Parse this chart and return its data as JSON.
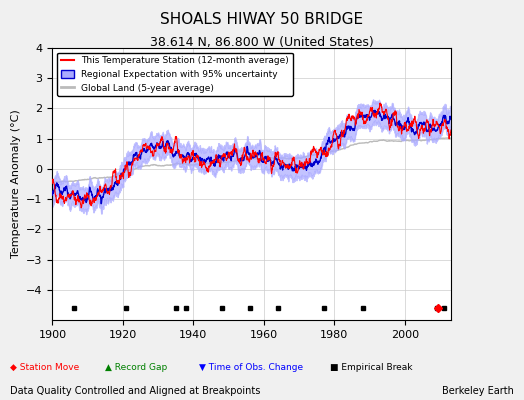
{
  "title": "SHOALS HIWAY 50 BRIDGE",
  "subtitle": "38.614 N, 86.800 W (United States)",
  "ylabel": "Temperature Anomaly (°C)",
  "xlabel_note": "Data Quality Controlled and Aligned at Breakpoints",
  "credit": "Berkeley Earth",
  "xmin": 1900,
  "xmax": 2013,
  "ymin": -5,
  "ymax": 4,
  "yticks": [
    -4,
    -3,
    -2,
    -1,
    0,
    1,
    2,
    3,
    4
  ],
  "xticks": [
    1900,
    1920,
    1940,
    1960,
    1980,
    2000
  ],
  "station_moves": [],
  "record_gaps": [],
  "obs_changes": [],
  "empirical_breaks": [
    1906,
    1921,
    1935,
    1938,
    1948,
    1956,
    1964,
    1977,
    1988,
    2009,
    2011
  ],
  "colors": {
    "station_line": "#FF0000",
    "regional_line": "#0000CC",
    "regional_fill": "#AAAAFF",
    "global_land": "#BBBBBB",
    "background": "#F0F0F0",
    "plot_bg": "#FFFFFF",
    "grid": "#CCCCCC"
  }
}
